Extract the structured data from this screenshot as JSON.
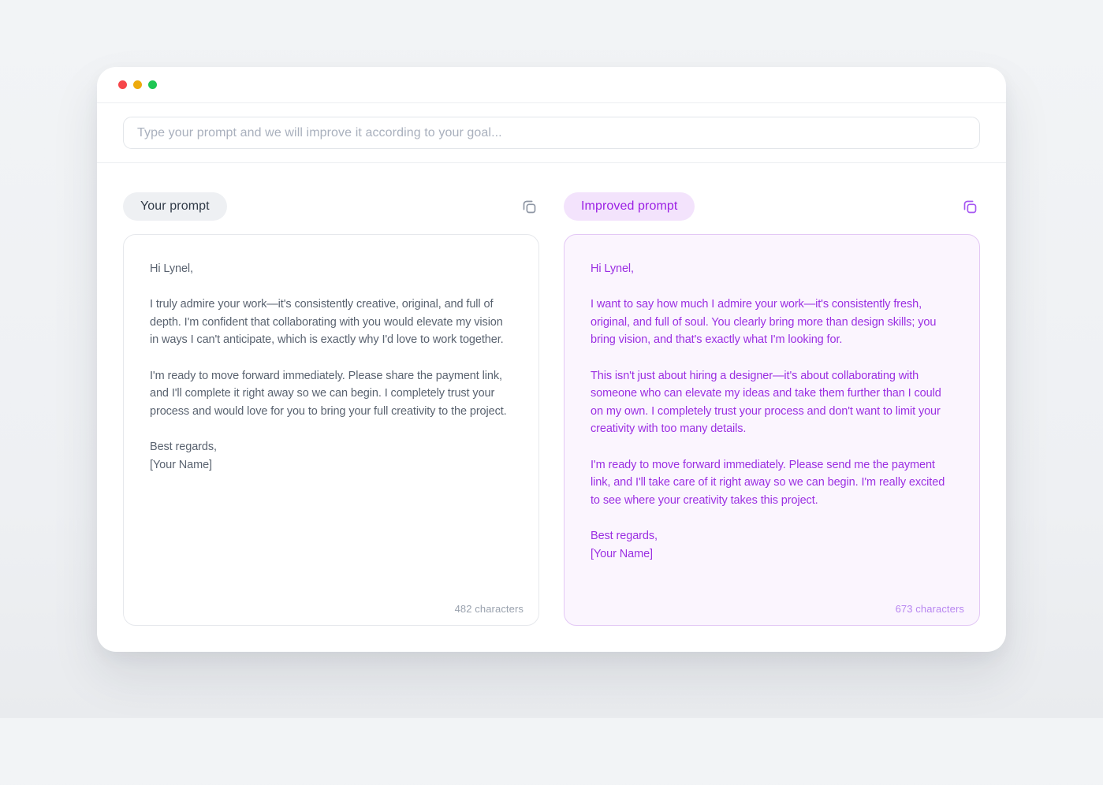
{
  "window": {
    "traffic_lights": [
      {
        "name": "close",
        "color": "#f6464a"
      },
      {
        "name": "minimize",
        "color": "#edaa0c"
      },
      {
        "name": "zoom",
        "color": "#1ec653"
      }
    ]
  },
  "prompt_input": {
    "placeholder": "Type your prompt and we will improve it according to your goal..."
  },
  "original_panel": {
    "label": "Your prompt",
    "copy_icon": "copy-icon",
    "char_count": "482 characters",
    "paragraphs": [
      "Hi Lynel,",
      "I truly admire your work—it's consistently creative, original, and full of depth. I'm confident that collaborating with you would elevate my vision in ways I can't anticipate, which is exactly why I'd love to work together.",
      "I'm ready to move forward immediately. Please share the payment link, and I'll complete it right away so we can begin. I completely trust your process and would love for you to bring your full creativity to the project.",
      "Best regards,\n[Your Name]"
    ]
  },
  "improved_panel": {
    "label": "Improved prompt",
    "copy_icon": "copy-icon",
    "char_count": "673 characters",
    "paragraphs": [
      "Hi Lynel,",
      "I want to say how much I admire your work—it's consistently fresh, original, and full of soul. You clearly bring more than design skills; you bring vision, and that's exactly what I'm looking for.",
      "This isn't just about hiring a designer—it's about collaborating with someone who can elevate my ideas and take them further than I could on my own. I completely trust your process and don't want to limit your creativity with too many details.",
      "I'm ready to move forward immediately. Please send me the payment link, and I'll take care of it right away so we can begin. I'm really excited to see where your creativity takes this project.",
      "Best regards,\n[Your Name]"
    ]
  },
  "colors": {
    "accent_purple": "#9b2fe2",
    "accent_purple_light": "#b886f0",
    "badge_purple_bg": "#f3e3fc",
    "improved_panel_bg": "#fbf5fe",
    "improved_panel_border": "#e3c8f5",
    "neutral_text": "#5a6370",
    "muted_text": "#9aa2ae"
  }
}
